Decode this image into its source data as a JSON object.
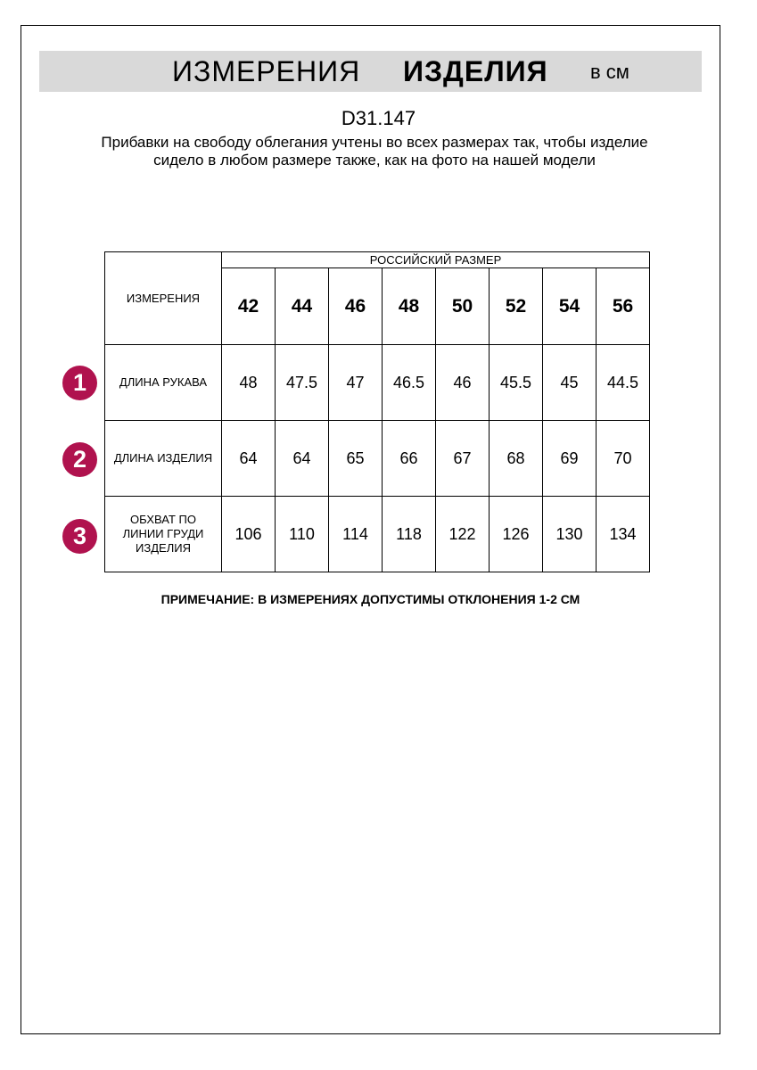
{
  "header": {
    "title_regular": "ИЗМЕРЕНИЯ",
    "title_bold": "ИЗДЕЛИЯ",
    "unit": "в см"
  },
  "article": "D31.147",
  "intro": "Прибавки на свободу облегания учтены во всех размерах так, чтобы изделие сидело в любом размере также, как на фото на нашей модели",
  "table": {
    "measure_header": "ИЗМЕРЕНИЯ",
    "size_group_header": "РОССИЙСКИЙ РАЗМЕР",
    "sizes": [
      "42",
      "44",
      "46",
      "48",
      "50",
      "52",
      "54",
      "56"
    ],
    "rows": [
      {
        "num": "1",
        "label": "ДЛИНА РУКАВА",
        "values": [
          "48",
          "47.5",
          "47",
          "46.5",
          "46",
          "45.5",
          "45",
          "44.5"
        ]
      },
      {
        "num": "2",
        "label": "ДЛИНА ИЗДЕЛИЯ",
        "values": [
          "64",
          "64",
          "65",
          "66",
          "67",
          "68",
          "69",
          "70"
        ]
      },
      {
        "num": "3",
        "label": "ОБХВАТ ПО ЛИНИИ ГРУДИ ИЗДЕЛИЯ",
        "values": [
          "106",
          "110",
          "114",
          "118",
          "122",
          "126",
          "130",
          "134"
        ]
      }
    ]
  },
  "note": "ПРИМЕЧАНИЕ: В ИЗМЕРЕНИЯХ ДОПУСТИМЫ ОТКЛОНЕНИЯ 1-2 СМ",
  "colors": {
    "badge": "#b0124e",
    "banner": "#d9d9d9"
  }
}
